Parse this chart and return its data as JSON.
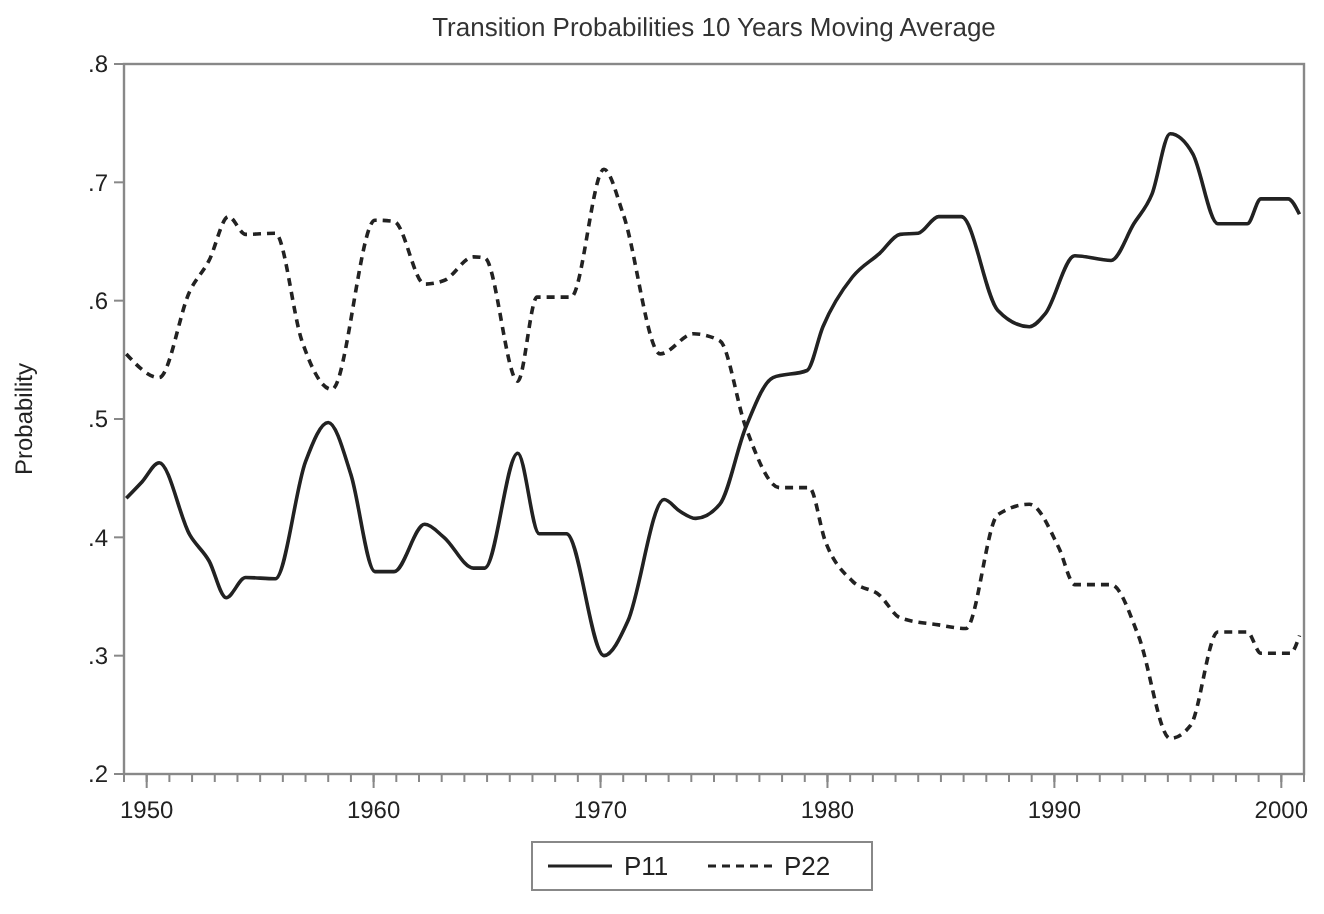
{
  "chart_data": {
    "type": "line",
    "title": "Transition Probabilities 10 Years Moving Average",
    "ylabel": "Probability",
    "xlim": [
      1949,
      2001
    ],
    "xticks": [
      1950,
      1960,
      1970,
      1980,
      1990,
      2000
    ],
    "ylim": [
      0.2,
      0.8
    ],
    "yticks": [
      {
        "value": 0.2,
        "label": ".2"
      },
      {
        "value": 0.3,
        "label": ".3"
      },
      {
        "value": 0.4,
        "label": ".4"
      },
      {
        "value": 0.5,
        "label": ".5"
      },
      {
        "value": 0.6,
        "label": ".6"
      },
      {
        "value": 0.7,
        "label": ".7"
      },
      {
        "value": 0.8,
        "label": ".8"
      }
    ],
    "grid": false,
    "legend": "bottom",
    "series": [
      {
        "name": "P11",
        "color": "#222222",
        "line_style": "solid",
        "x": [
          1949.1,
          1949.8,
          1950.55,
          1951.9,
          1952.75,
          1953.5,
          1954.36,
          1955.67,
          1957.0,
          1958.0,
          1959.0,
          1960.06,
          1960.9,
          1962.25,
          1963.1,
          1964.4,
          1964.9,
          1966.35,
          1967.3,
          1968.5,
          1970.15,
          1971.2,
          1972.8,
          1973.5,
          1974.2,
          1975.26,
          1976.4,
          1977.6,
          1979.1,
          1979.8,
          1981.1,
          1982.3,
          1983.2,
          1984.0,
          1984.9,
          1985.9,
          1987.5,
          1988.9,
          1989.6,
          1990.9,
          1992.5,
          1993.5,
          1994.3,
          1995.1,
          1996.1,
          1997.2,
          1998.5,
          1999.1,
          2000.3,
          2000.8
        ],
        "values": [
          0.433,
          0.447,
          0.463,
          0.402,
          0.38,
          0.349,
          0.366,
          0.365,
          0.464,
          0.497,
          0.453,
          0.371,
          0.371,
          0.411,
          0.4,
          0.374,
          0.374,
          0.471,
          0.403,
          0.403,
          0.3,
          0.329,
          0.432,
          0.422,
          0.416,
          0.428,
          0.493,
          0.535,
          0.541,
          0.578,
          0.62,
          0.64,
          0.656,
          0.657,
          0.671,
          0.671,
          0.592,
          0.578,
          0.589,
          0.638,
          0.634,
          0.665,
          0.69,
          0.741,
          0.724,
          0.665,
          0.665,
          0.686,
          0.686,
          0.673
        ]
      },
      {
        "name": "P22",
        "color": "#222222",
        "line_style": "dashed",
        "x": [
          1949.1,
          1950.55,
          1951.9,
          1952.75,
          1953.6,
          1954.36,
          1955.67,
          1956.84,
          1958.16,
          1960.06,
          1960.9,
          1962.25,
          1963.1,
          1964.4,
          1964.9,
          1966.35,
          1967.2,
          1968.7,
          1970.15,
          1971.0,
          1972.63,
          1974.1,
          1975.26,
          1976.4,
          1977.9,
          1979.2,
          1979.9,
          1981.1,
          1982.3,
          1983.2,
          1984.9,
          1986.1,
          1987.5,
          1988.9,
          1990.2,
          1990.9,
          1992.5,
          1993.7,
          1995.1,
          1996.0,
          1997.2,
          1998.5,
          1999.1,
          2000.4,
          2000.8
        ],
        "values": [
          0.555,
          0.535,
          0.608,
          0.634,
          0.671,
          0.656,
          0.657,
          0.566,
          0.525,
          0.668,
          0.667,
          0.614,
          0.617,
          0.637,
          0.636,
          0.532,
          0.603,
          0.603,
          0.711,
          0.673,
          0.555,
          0.572,
          0.566,
          0.493,
          0.442,
          0.442,
          0.397,
          0.363,
          0.351,
          0.332,
          0.326,
          0.323,
          0.419,
          0.428,
          0.391,
          0.36,
          0.36,
          0.317,
          0.23,
          0.241,
          0.32,
          0.32,
          0.302,
          0.302,
          0.317
        ]
      }
    ]
  }
}
